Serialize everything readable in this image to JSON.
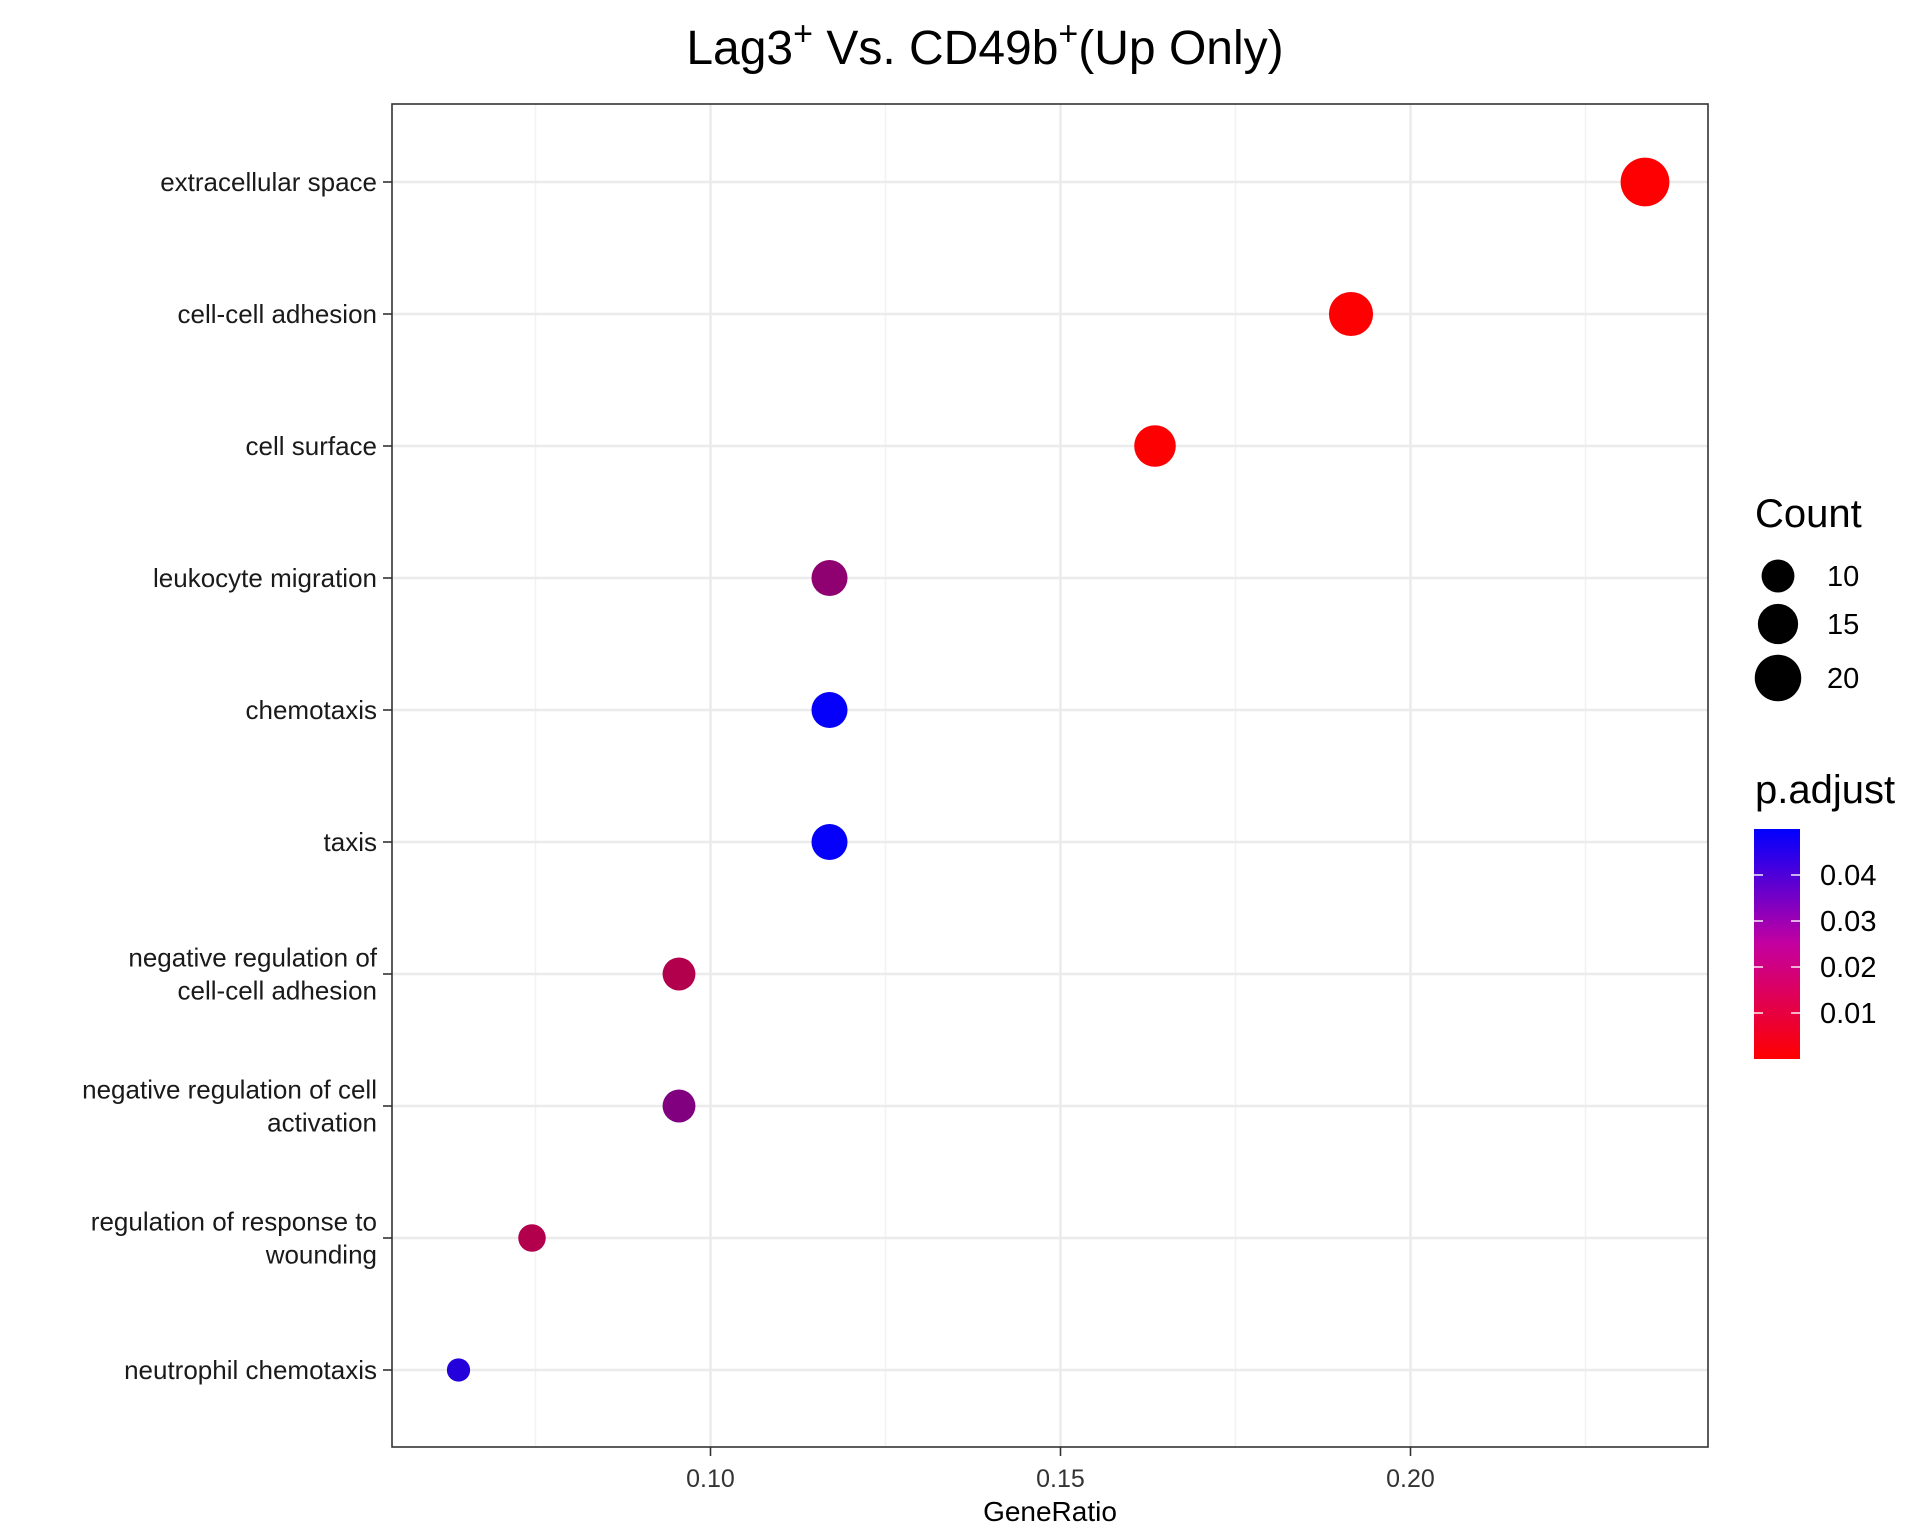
{
  "chart_data": {
    "type": "scatter",
    "title": {
      "part1": "Lag3",
      "sup1": "+",
      "part2": " Vs. CD49b",
      "sup2": "+",
      "part3": "(Up Only)"
    },
    "xlabel": "GeneRatio",
    "ylabel": "",
    "xlim": [
      0.0545,
      0.2425
    ],
    "x_ticks": [
      0.1,
      0.15,
      0.2
    ],
    "x_tick_labels": [
      "0.10",
      "0.15",
      "0.20"
    ],
    "grid": true,
    "categories": [
      {
        "label_lines": [
          "extracellular space"
        ],
        "x": 0.2335,
        "count": 22,
        "p_adjust": 0.0002
      },
      {
        "label_lines": [
          "cell-cell adhesion"
        ],
        "x": 0.1915,
        "count": 18,
        "p_adjust": 0.0004
      },
      {
        "label_lines": [
          "cell surface"
        ],
        "x": 0.1635,
        "count": 16,
        "p_adjust": 0.0003
      },
      {
        "label_lines": [
          "leukocyte migration"
        ],
        "x": 0.117,
        "count": 12,
        "p_adjust": 0.022
      },
      {
        "label_lines": [
          "chemotaxis"
        ],
        "x": 0.117,
        "count": 12,
        "p_adjust": 0.049
      },
      {
        "label_lines": [
          "taxis"
        ],
        "x": 0.117,
        "count": 12,
        "p_adjust": 0.049
      },
      {
        "label_lines": [
          "negative regulation of",
          "cell-cell adhesion"
        ],
        "x": 0.0955,
        "count": 10,
        "p_adjust": 0.015
      },
      {
        "label_lines": [
          "negative regulation of cell",
          "activation"
        ],
        "x": 0.0955,
        "count": 10,
        "p_adjust": 0.025
      },
      {
        "label_lines": [
          "regulation of response to",
          "wounding"
        ],
        "x": 0.0745,
        "count": 7,
        "p_adjust": 0.015
      },
      {
        "label_lines": [
          "neutrophil chemotaxis"
        ],
        "x": 0.064,
        "count": 5,
        "p_adjust": 0.043
      }
    ],
    "size_legend": {
      "title": "Count",
      "entries": [
        {
          "label": "10",
          "value": 10
        },
        {
          "label": "15",
          "value": 15
        },
        {
          "label": "20",
          "value": 20
        }
      ]
    },
    "color_legend": {
      "title": "p.adjust",
      "range": [
        0.0,
        0.05
      ],
      "low_color": "#ff0000",
      "high_color": "#0000ff",
      "ticks": [
        {
          "label": "0.04",
          "value": 0.04
        },
        {
          "label": "0.03",
          "value": 0.03
        },
        {
          "label": "0.02",
          "value": 0.02
        },
        {
          "label": "0.01",
          "value": 0.01
        }
      ]
    },
    "legend_position": "right"
  }
}
